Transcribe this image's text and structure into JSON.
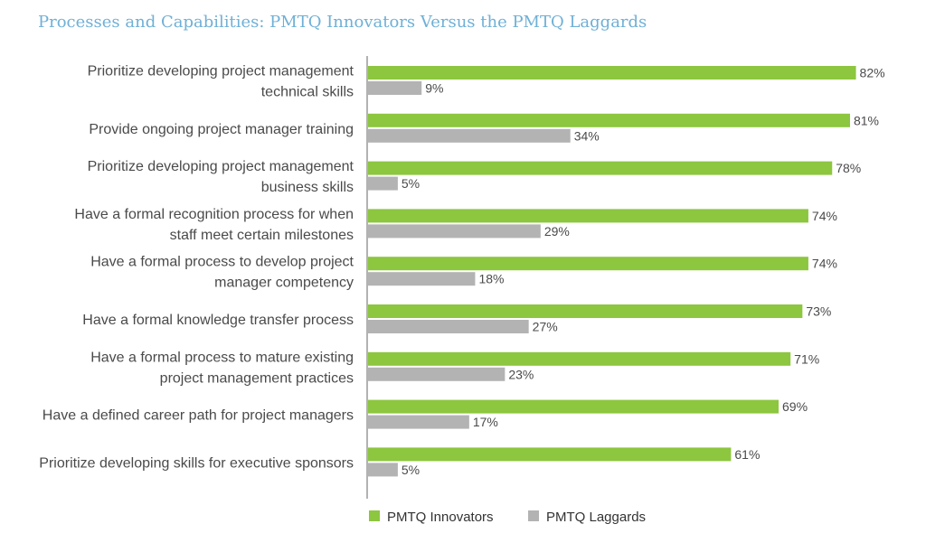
{
  "chart_data": {
    "type": "bar",
    "orientation": "horizontal",
    "title": "Processes and Capabilities: PMTQ Innovators Versus the PMTQ Laggards",
    "categories": [
      [
        "Prioritize developing project management",
        "technical skills"
      ],
      [
        "Provide ongoing project manager training"
      ],
      [
        "Prioritize developing project management",
        "business skills"
      ],
      [
        "Have a formal recognition process for when",
        "staff meet certain milestones"
      ],
      [
        "Have a formal process to develop project",
        "manager competency"
      ],
      [
        "Have a formal knowledge transfer process"
      ],
      [
        "Have a formal process to mature existing",
        "project management practices"
      ],
      [
        "Have a defined career path for project managers"
      ],
      [
        "Prioritize developing skills for executive sponsors"
      ]
    ],
    "series": [
      {
        "name": "PMTQ Innovators",
        "color": "#8dc63f",
        "values": [
          82,
          81,
          78,
          74,
          74,
          73,
          71,
          69,
          61
        ],
        "labels": [
          "82%",
          "81%",
          "78%",
          "74%",
          "74%",
          "73%",
          "71%",
          "69%",
          "61%"
        ]
      },
      {
        "name": "PMTQ Laggards",
        "color": "#b3b3b3",
        "values": [
          9,
          34,
          5,
          29,
          18,
          27,
          23,
          17,
          5
        ],
        "labels": [
          "9%",
          "34%",
          "5%",
          "29%",
          "18%",
          "27%",
          "23%",
          "17%",
          "5%"
        ]
      }
    ],
    "xlim": [
      0,
      100
    ],
    "axis_color": "#999999",
    "legend_position": "bottom"
  }
}
